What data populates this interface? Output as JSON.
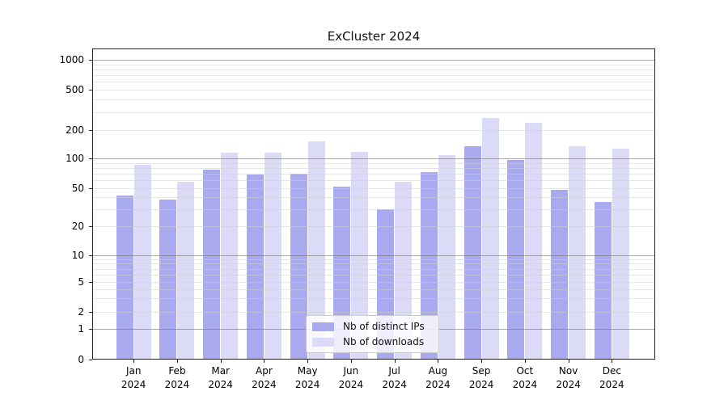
{
  "chart_data": {
    "type": "bar",
    "title": "ExCluster 2024",
    "categories": [
      "Jan 2024",
      "Feb 2024",
      "Mar 2024",
      "Apr 2024",
      "May 2024",
      "Jun 2024",
      "Jul 2024",
      "Aug 2024",
      "Sep 2024",
      "Oct 2024",
      "Nov 2024",
      "Dec 2024"
    ],
    "series": [
      {
        "name": "Nb of distinct IPs",
        "color": "#a9a9f0",
        "values": [
          42,
          38,
          77,
          69,
          70,
          52,
          30,
          73,
          135,
          96,
          48,
          36
        ]
      },
      {
        "name": "Nb of downloads",
        "color": "#dbdbf8",
        "values": [
          86,
          58,
          116,
          114,
          152,
          118,
          58,
          109,
          265,
          237,
          135,
          126
        ]
      }
    ],
    "yscale": "symlog",
    "yticks": [
      0,
      1,
      2,
      5,
      10,
      20,
      50,
      100,
      200,
      500,
      1000
    ],
    "ylim": [
      0,
      1300
    ],
    "grid": "on",
    "legend_position": "lower-center"
  }
}
